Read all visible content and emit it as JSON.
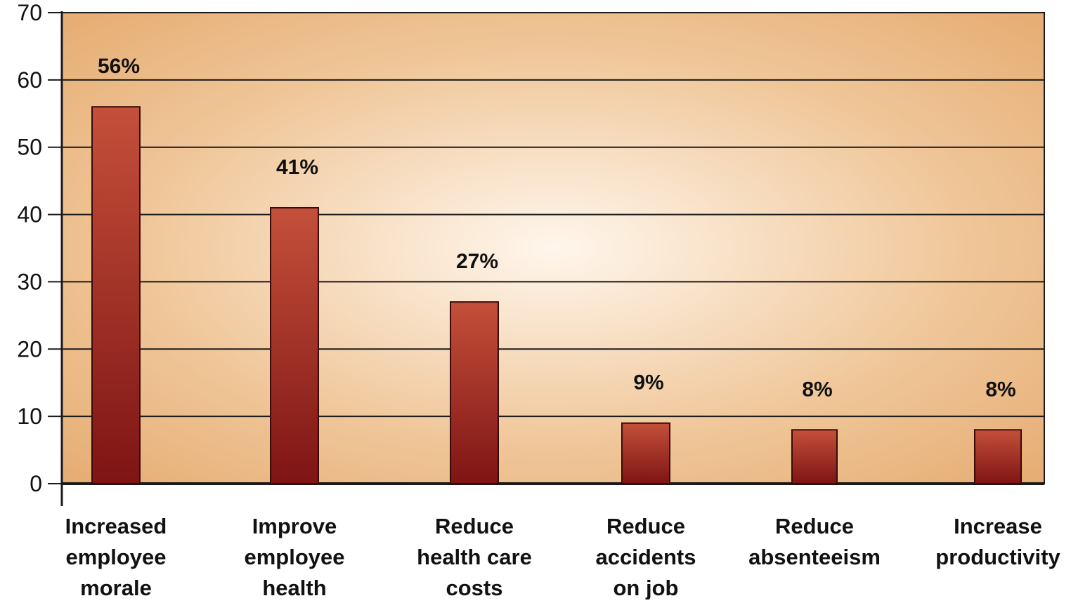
{
  "chart_data": {
    "type": "bar",
    "title": "",
    "xlabel": "",
    "ylabel": "",
    "ylim": [
      0,
      70
    ],
    "yticks": [
      0,
      10,
      20,
      30,
      40,
      50,
      60,
      70
    ],
    "grid": true,
    "categories": [
      [
        "Increased",
        "employee",
        "morale"
      ],
      [
        "Improve",
        "employee",
        "health"
      ],
      [
        "Reduce",
        "health care",
        "costs"
      ],
      [
        "Reduce",
        "accidents",
        "on job"
      ],
      [
        "Reduce",
        "absenteeism"
      ],
      [
        "Increase",
        "productivity"
      ]
    ],
    "values": [
      56,
      41,
      27,
      9,
      8,
      8
    ],
    "data_labels": [
      "56%",
      "41%",
      "27%",
      "9%",
      "8%",
      "8%"
    ],
    "colors": {
      "bar_light": "#c4503a",
      "bar_dark": "#7e1414",
      "bg_center": "#fff6ec",
      "bg_edge": "#e4a86c",
      "gridline": "#1a1a1a"
    }
  }
}
